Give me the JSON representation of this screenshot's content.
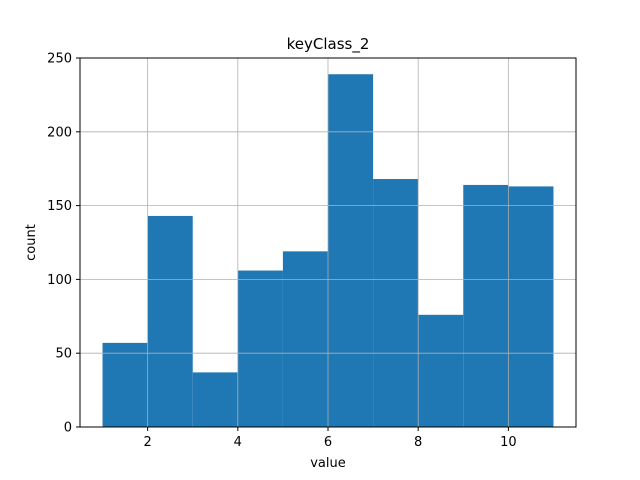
{
  "chart_data": {
    "type": "bar",
    "title": "keyClass_2",
    "xlabel": "value",
    "ylabel": "count",
    "bins": [
      {
        "x0": 1,
        "x1": 2,
        "value": 57
      },
      {
        "x0": 2,
        "x1": 3,
        "value": 143
      },
      {
        "x0": 3,
        "x1": 4,
        "value": 37
      },
      {
        "x0": 4,
        "x1": 5,
        "value": 106
      },
      {
        "x0": 5,
        "x1": 6,
        "value": 119
      },
      {
        "x0": 6,
        "x1": 7,
        "value": 239
      },
      {
        "x0": 7,
        "x1": 8,
        "value": 168
      },
      {
        "x0": 8,
        "x1": 9,
        "value": 76
      },
      {
        "x0": 9,
        "x1": 10,
        "value": 164
      },
      {
        "x0": 10,
        "x1": 11,
        "value": 163
      }
    ],
    "xlim": [
      0.5,
      11.5
    ],
    "ylim": [
      0,
      250
    ],
    "xticks": [
      2,
      4,
      6,
      8,
      10
    ],
    "xtick_labels": [
      "2",
      "4",
      "6",
      "8",
      "10"
    ],
    "yticks": [
      0,
      50,
      100,
      150,
      200,
      250
    ],
    "ytick_labels": [
      "0",
      "50",
      "100",
      "150",
      "200",
      "250"
    ],
    "grid": true,
    "bar_color": "#1f77b4",
    "grid_color": "#b0b0b0"
  }
}
